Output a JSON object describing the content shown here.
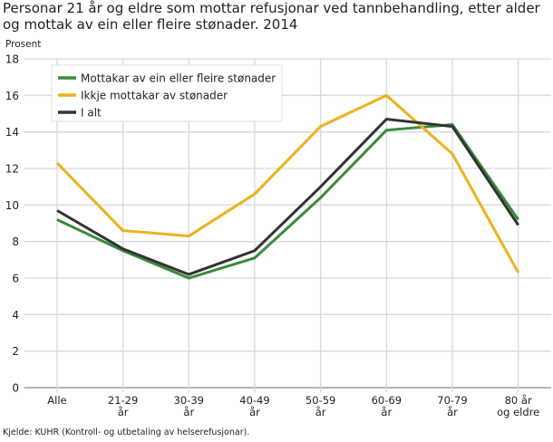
{
  "chart_data": {
    "type": "line",
    "title": "Personar 21 år og eldre som mottar refusjonar ved tannbehandling, etter alder og mottak av ein eller fleire stønader. 2014",
    "ylabel": "Prosent",
    "xlabel": "",
    "categories": [
      [
        "Alle"
      ],
      [
        "21-29",
        "år"
      ],
      [
        "30-39",
        "år"
      ],
      [
        "40-49",
        "år"
      ],
      [
        "50-59",
        "år"
      ],
      [
        "60-69",
        "år"
      ],
      [
        "70-79",
        "år"
      ],
      [
        "80 år",
        "og eldre"
      ]
    ],
    "ylim": [
      0,
      18
    ],
    "yticks": [
      0,
      2,
      4,
      6,
      8,
      10,
      12,
      14,
      16,
      18
    ],
    "grid": true,
    "legend_position": "top-left",
    "series": [
      {
        "name": "Mottakar av ein eller fleire stønader",
        "color": "#3a8a3e",
        "values": [
          9.2,
          7.5,
          6.0,
          7.1,
          10.4,
          14.1,
          14.4,
          9.2
        ]
      },
      {
        "name": "Ikkje mottakar av stønader",
        "color": "#ecb21e",
        "values": [
          12.3,
          8.6,
          8.3,
          10.6,
          14.3,
          16.0,
          12.8,
          6.3
        ]
      },
      {
        "name": "I alt",
        "color": "#333333",
        "values": [
          9.7,
          7.6,
          6.2,
          7.5,
          11.0,
          14.7,
          14.3,
          8.9
        ]
      }
    ],
    "source": "Kjelde: KUHR (Kontroll- og utbetaling av helserefusjonar)."
  }
}
